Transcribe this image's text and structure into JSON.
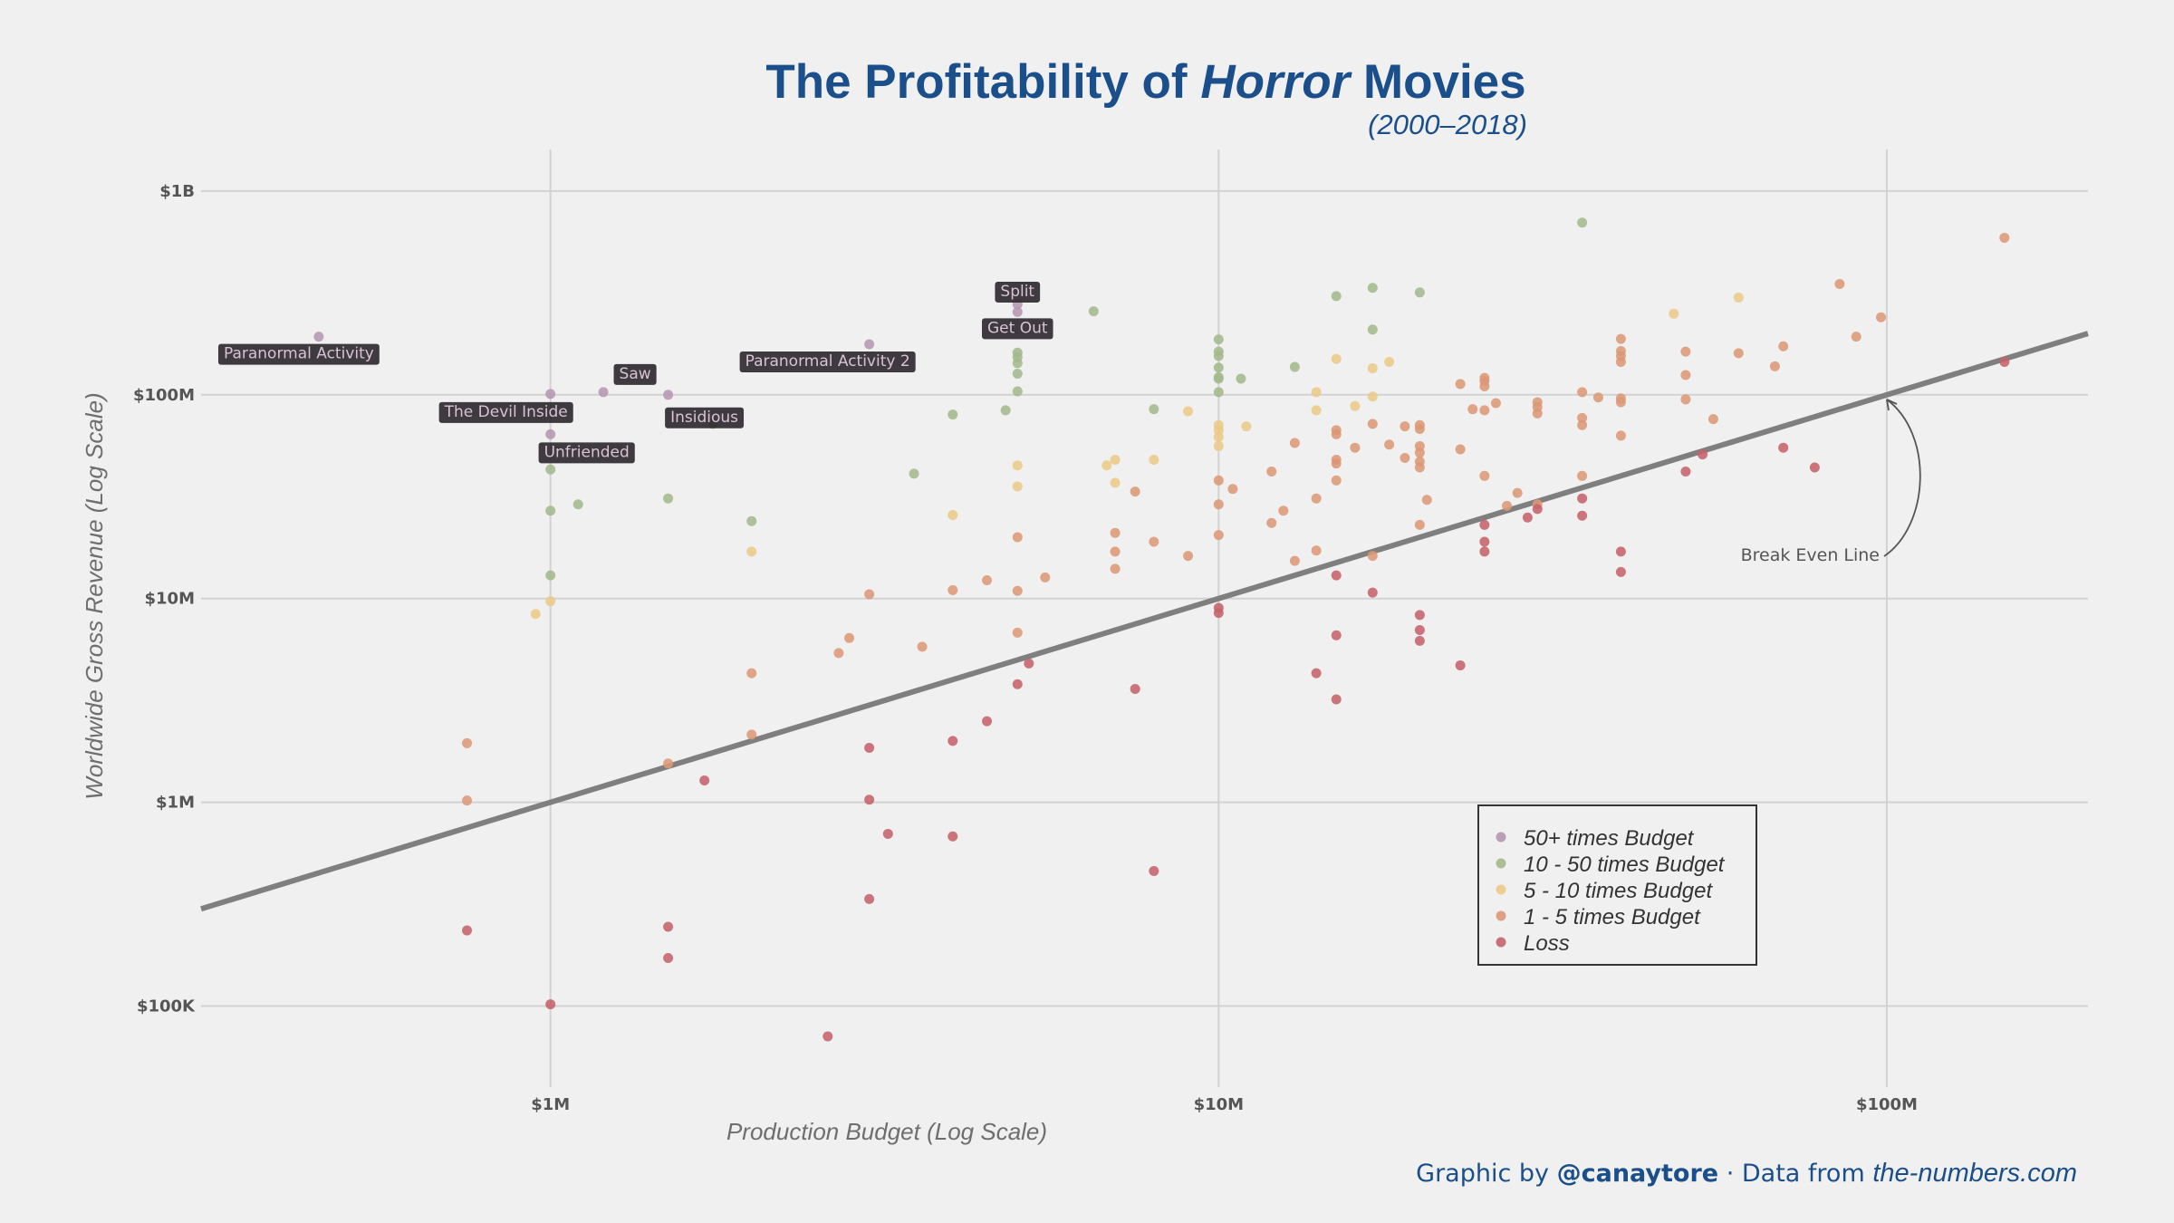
{
  "title": {
    "prefix": "The Profitability of ",
    "emphasis": "Horror",
    "suffix": " Movies",
    "subtitle": "(2000–2018)",
    "color": "#1a4f8b"
  },
  "credit": {
    "prefix": "Graphic by ",
    "handle": "@canaytore",
    "middle": " · Data from ",
    "source": "the-numbers.com"
  },
  "chart_data": {
    "type": "scatter",
    "title": "The Profitability of Horror Movies",
    "subtitle": "(2000–2018)",
    "xlabel": "Production Budget (Log Scale)",
    "ylabel": "Worldwide Gross Revenue (Log Scale)",
    "x_scale": "log",
    "y_scale": "log",
    "xlim": [
      300000,
      200000000
    ],
    "ylim": [
      40000,
      1600000000
    ],
    "grid": true,
    "x_ticks": [
      {
        "value": 1000000,
        "label": "$1M"
      },
      {
        "value": 10000000,
        "label": "$10M"
      },
      {
        "value": 100000000,
        "label": "$100M"
      }
    ],
    "y_ticks": [
      {
        "value": 100000,
        "label": "$100K"
      },
      {
        "value": 1000000,
        "label": "$1M"
      },
      {
        "value": 10000000,
        "label": "$10M"
      },
      {
        "value": 100000000,
        "label": "$100M"
      },
      {
        "value": 1000000000,
        "label": "$1B"
      }
    ],
    "reference_line": {
      "type": "y=x",
      "label": "Break Even Line"
    },
    "legend_position": "bottom-right",
    "series": [
      {
        "name": "50+ times Budget",
        "color": "#b596b2",
        "points": [
          [
            450000,
            193000000
          ],
          [
            1000000,
            101000000
          ],
          [
            1000000,
            64000000
          ],
          [
            1200000,
            103000000
          ],
          [
            1500000,
            100000000
          ],
          [
            3000000,
            177000000
          ],
          [
            5000000,
            278000000
          ],
          [
            5000000,
            255000000
          ]
        ]
      },
      {
        "name": "10 - 50 times Budget",
        "color": "#a2b98c",
        "points": [
          [
            1000000,
            43000000
          ],
          [
            1000000,
            27000000
          ],
          [
            1000000,
            13000000
          ],
          [
            1100000,
            29000000
          ],
          [
            1500000,
            31000000
          ],
          [
            1750000,
            72000000
          ],
          [
            2000000,
            24000000
          ],
          [
            3500000,
            41000000
          ],
          [
            4000000,
            80000000
          ],
          [
            4800000,
            84000000
          ],
          [
            5000000,
            161000000
          ],
          [
            5000000,
            153000000
          ],
          [
            5000000,
            143000000
          ],
          [
            5000000,
            127000000
          ],
          [
            5000000,
            104000000
          ],
          [
            6500000,
            257000000
          ],
          [
            8000000,
            85000000
          ],
          [
            10000000,
            187000000
          ],
          [
            10000000,
            163000000
          ],
          [
            10000000,
            155000000
          ],
          [
            10000000,
            136000000
          ],
          [
            10000000,
            122000000
          ],
          [
            10000000,
            120000000
          ],
          [
            10000000,
            103000000
          ],
          [
            10800000,
            120000000
          ],
          [
            13000000,
            137000000
          ],
          [
            15000000,
            305000000
          ],
          [
            17000000,
            335000000
          ],
          [
            17000000,
            209000000
          ],
          [
            20000000,
            318000000
          ],
          [
            35000000,
            700000000
          ]
        ]
      },
      {
        "name": "5 - 10 times Budget",
        "color": "#ebca86",
        "points": [
          [
            950000,
            8400000
          ],
          [
            1000000,
            9700000
          ],
          [
            2000000,
            17000000
          ],
          [
            4000000,
            25700000
          ],
          [
            5000000,
            45000000
          ],
          [
            5000000,
            35500000
          ],
          [
            6800000,
            45000000
          ],
          [
            7000000,
            48000000
          ],
          [
            7000000,
            37000000
          ],
          [
            8000000,
            48000000
          ],
          [
            9000000,
            83000000
          ],
          [
            10000000,
            71000000
          ],
          [
            10000000,
            67000000
          ],
          [
            10000000,
            62000000
          ],
          [
            10000000,
            56000000
          ],
          [
            11000000,
            70000000
          ],
          [
            14000000,
            103000000
          ],
          [
            14000000,
            84000000
          ],
          [
            15000000,
            150000000
          ],
          [
            16000000,
            88000000
          ],
          [
            17000000,
            135000000
          ],
          [
            17000000,
            98000000
          ],
          [
            18000000,
            145000000
          ],
          [
            48000000,
            250000000
          ],
          [
            60000000,
            300000000
          ]
        ]
      },
      {
        "name": "1 - 5 times Budget",
        "color": "#dc9776",
        "points": [
          [
            750000,
            1950000
          ],
          [
            750000,
            1020000
          ],
          [
            1500000,
            1550000
          ],
          [
            2000000,
            4300000
          ],
          [
            2000000,
            2150000
          ],
          [
            2700000,
            5400000
          ],
          [
            2800000,
            6400000
          ],
          [
            3000000,
            10500000
          ],
          [
            3600000,
            5800000
          ],
          [
            4000000,
            11000000
          ],
          [
            4500000,
            12300000
          ],
          [
            5000000,
            20000000
          ],
          [
            5000000,
            10900000
          ],
          [
            5000000,
            6800000
          ],
          [
            5500000,
            12700000
          ],
          [
            7000000,
            21000000
          ],
          [
            7000000,
            17000000
          ],
          [
            7000000,
            14000000
          ],
          [
            7500000,
            33500000
          ],
          [
            8000000,
            19000000
          ],
          [
            9000000,
            16200000
          ],
          [
            10000000,
            38000000
          ],
          [
            10000000,
            29000000
          ],
          [
            10000000,
            20500000
          ],
          [
            10500000,
            34500000
          ],
          [
            12000000,
            42000000
          ],
          [
            12000000,
            23500000
          ],
          [
            12500000,
            27000000
          ],
          [
            13000000,
            58000000
          ],
          [
            13000000,
            15300000
          ],
          [
            14000000,
            31000000
          ],
          [
            14000000,
            17200000
          ],
          [
            15000000,
            67000000
          ],
          [
            15000000,
            64000000
          ],
          [
            15000000,
            48000000
          ],
          [
            15000000,
            46000000
          ],
          [
            15000000,
            38000000
          ],
          [
            16000000,
            55000000
          ],
          [
            17000000,
            72000000
          ],
          [
            17000000,
            16200000
          ],
          [
            18000000,
            57000000
          ],
          [
            19000000,
            70000000
          ],
          [
            19000000,
            49000000
          ],
          [
            20000000,
            71000000
          ],
          [
            20000000,
            68000000
          ],
          [
            20000000,
            56000000
          ],
          [
            20000000,
            52000000
          ],
          [
            20000000,
            47000000
          ],
          [
            20000000,
            44000000
          ],
          [
            20000000,
            23000000
          ],
          [
            20500000,
            30500000
          ],
          [
            23000000,
            113000000
          ],
          [
            23000000,
            54000000
          ],
          [
            24000000,
            85000000
          ],
          [
            25000000,
            121000000
          ],
          [
            25000000,
            117000000
          ],
          [
            25000000,
            110000000
          ],
          [
            25000000,
            84000000
          ],
          [
            25000000,
            40000000
          ],
          [
            26000000,
            91000000
          ],
          [
            27000000,
            28500000
          ],
          [
            28000000,
            33000000
          ],
          [
            30000000,
            92000000
          ],
          [
            30000000,
            87000000
          ],
          [
            30000000,
            81000000
          ],
          [
            30000000,
            29000000
          ],
          [
            35000000,
            103000000
          ],
          [
            35000000,
            77000000
          ],
          [
            35000000,
            71000000
          ],
          [
            35000000,
            40000000
          ],
          [
            37000000,
            97000000
          ],
          [
            40000000,
            188000000
          ],
          [
            40000000,
            164000000
          ],
          [
            40000000,
            155000000
          ],
          [
            40000000,
            145000000
          ],
          [
            40000000,
            96000000
          ],
          [
            40000000,
            92000000
          ],
          [
            40000000,
            63000000
          ],
          [
            50000000,
            163000000
          ],
          [
            50000000,
            125000000
          ],
          [
            50000000,
            95000000
          ],
          [
            55000000,
            76000000
          ],
          [
            60000000,
            160000000
          ],
          [
            68000000,
            138000000
          ],
          [
            70000000,
            173000000
          ],
          [
            85000000,
            350000000
          ],
          [
            90000000,
            193000000
          ],
          [
            98000000,
            240000000
          ],
          [
            150000000,
            590000000
          ]
        ]
      },
      {
        "name": "Loss",
        "color": "#c5626a",
        "points": [
          [
            750000,
            235000
          ],
          [
            1000000,
            102000
          ],
          [
            1500000,
            245000
          ],
          [
            1500000,
            172000
          ],
          [
            1700000,
            1280000
          ],
          [
            2600000,
            71000
          ],
          [
            3000000,
            1850000
          ],
          [
            3000000,
            1030000
          ],
          [
            3000000,
            335000
          ],
          [
            3200000,
            700000
          ],
          [
            4000000,
            2000000
          ],
          [
            4000000,
            680000
          ],
          [
            4500000,
            2500000
          ],
          [
            5000000,
            3800000
          ],
          [
            5200000,
            4800000
          ],
          [
            7500000,
            3600000
          ],
          [
            8000000,
            460000
          ],
          [
            10000000,
            9000000
          ],
          [
            10000000,
            8500000
          ],
          [
            14000000,
            4300000
          ],
          [
            15000000,
            13000000
          ],
          [
            15000000,
            6600000
          ],
          [
            15000000,
            3200000
          ],
          [
            17000000,
            10700000
          ],
          [
            20000000,
            8300000
          ],
          [
            20000000,
            7000000
          ],
          [
            20000000,
            6200000
          ],
          [
            23000000,
            4700000
          ],
          [
            25000000,
            23000000
          ],
          [
            25000000,
            19000000
          ],
          [
            25000000,
            17000000
          ],
          [
            29000000,
            25000000
          ],
          [
            30000000,
            27500000
          ],
          [
            35000000,
            31000000
          ],
          [
            35000000,
            25500000
          ],
          [
            40000000,
            17000000
          ],
          [
            40000000,
            13500000
          ],
          [
            50000000,
            42000000
          ],
          [
            53000000,
            51000000
          ],
          [
            70000000,
            55000000
          ],
          [
            78000000,
            44000000
          ],
          [
            150000000,
            145000000
          ]
        ]
      }
    ],
    "labeled_points": [
      {
        "label": "Paranormal Activity",
        "x": 450000,
        "y": 193000000
      },
      {
        "label": "The Devil Inside",
        "x": 1000000,
        "y": 101000000
      },
      {
        "label": "Saw",
        "x": 1200000,
        "y": 103000000
      },
      {
        "label": "Unfriended",
        "x": 1000000,
        "y": 64000000
      },
      {
        "label": "Insidious",
        "x": 1500000,
        "y": 100000000
      },
      {
        "label": "Paranormal Activity 2",
        "x": 3000000,
        "y": 177000000
      },
      {
        "label": "Split",
        "x": 5000000,
        "y": 278000000
      },
      {
        "label": "Get Out",
        "x": 5000000,
        "y": 255000000
      }
    ]
  }
}
